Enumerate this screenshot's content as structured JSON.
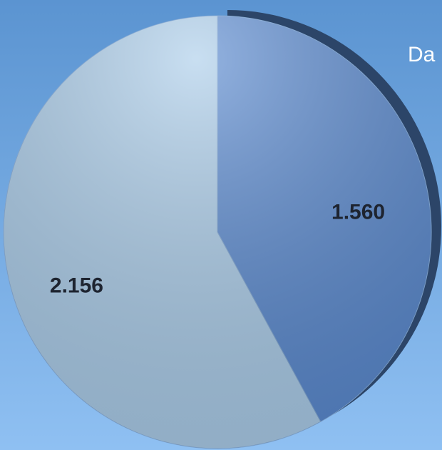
{
  "chart_data": {
    "type": "pie",
    "title": "Da",
    "categories": [
      null,
      null
    ],
    "values": [
      1.56,
      2.156
    ],
    "value_labels": [
      "1.560",
      "2.156"
    ],
    "colors": [
      "#5a8ad0",
      "#abcdea"
    ]
  }
}
